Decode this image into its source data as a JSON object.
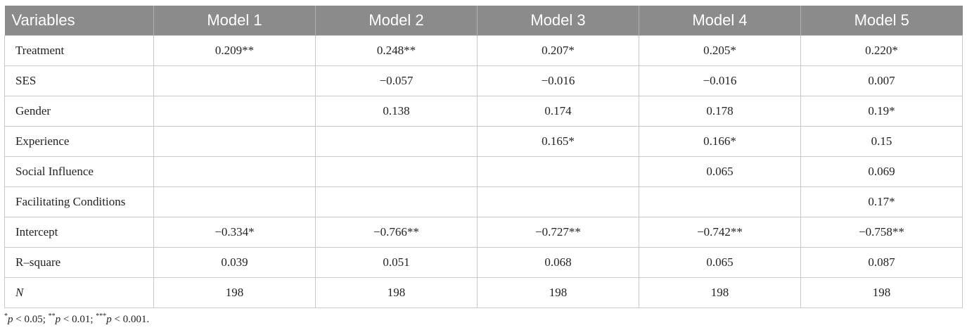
{
  "table": {
    "header": [
      "Variables",
      "Model 1",
      "Model 2",
      "Model 3",
      "Model 4",
      "Model 5"
    ],
    "rows": [
      [
        "Treatment",
        "0.209**",
        "0.248**",
        "0.207*",
        "0.205*",
        "0.220*"
      ],
      [
        "SES",
        null,
        "−0.057",
        "−0.016",
        "−0.016",
        "0.007"
      ],
      [
        "Gender",
        null,
        "0.138",
        "0.174",
        "0.178",
        "0.19*"
      ],
      [
        "Experience",
        null,
        null,
        "0.165*",
        "0.166*",
        "0.15"
      ],
      [
        "Social Influence",
        null,
        null,
        null,
        "0.065",
        "0.069"
      ],
      [
        "Facilitating Conditions",
        null,
        null,
        null,
        null,
        "0.17*"
      ],
      [
        "Intercept",
        "−0.334*",
        "−0.766**",
        "−0.727**",
        "−0.742**",
        "−0.758**"
      ],
      [
        "R–square",
        "0.039",
        "0.051",
        "0.068",
        "0.065",
        "0.087"
      ],
      [
        "N",
        "198",
        "198",
        "198",
        "198",
        "198"
      ]
    ]
  },
  "footnote": [
    {
      "stars": "*",
      "var": "p",
      "rest": " < 0.05; "
    },
    {
      "stars": "**",
      "var": "p",
      "rest": " < 0.01; "
    },
    {
      "stars": "***",
      "var": "p",
      "rest": " < 0.001."
    }
  ]
}
